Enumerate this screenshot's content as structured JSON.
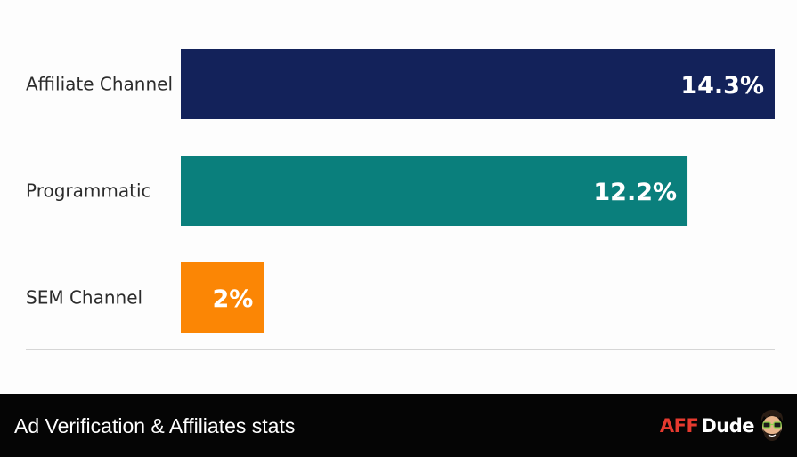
{
  "chart_data": {
    "type": "bar",
    "orientation": "horizontal",
    "categories": [
      "Affiliate Channel",
      "Programmatic",
      "SEM Channel"
    ],
    "values": [
      14.3,
      12.2,
      2
    ],
    "value_labels": [
      "14.3%",
      "12.2%",
      "2%"
    ],
    "unit": "%",
    "xlim": [
      0,
      14.3
    ],
    "colors": [
      "#13225a",
      "#0a7f7c",
      "#fb8605"
    ],
    "grid": false,
    "legend": "none"
  },
  "caption": {
    "text": "Ad Verification & Affiliates stats"
  },
  "brand": {
    "part1": "AFF",
    "part2": "Dude",
    "part1_color": "#e53a2f",
    "part2_color": "#ffffff",
    "mascot": "mascot-icon"
  }
}
